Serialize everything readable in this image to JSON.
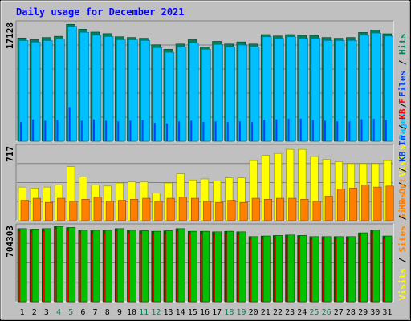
{
  "title": "Daily usage for December 2021",
  "colors": {
    "background": "#C0C0C0",
    "frame": "#808080",
    "title": "#0000FF",
    "hits": "#00805C",
    "files": "#0040FF",
    "pages": "#00C0FF",
    "visits": "#FFFF00",
    "sites": "#FF8000",
    "kb_in": "#00C000",
    "kb_out": "#FF0000",
    "weekend_day": "#00805C",
    "weekday": "#000000"
  },
  "chart_data": [
    {
      "type": "bar",
      "panel": "hits-files-pages",
      "ymax_label": "17128",
      "ylim": [
        0,
        17128
      ],
      "legend": [
        {
          "name": "Hits",
          "sep": "/",
          "color": "#00805C"
        },
        {
          "name": "Files",
          "sep": "/",
          "color": "#0040FF"
        },
        {
          "name": "Pages",
          "sep": "",
          "color": "#00C0FF"
        }
      ],
      "categories": [
        "1",
        "2",
        "3",
        "4",
        "5",
        "6",
        "7",
        "8",
        "9",
        "10",
        "11",
        "12",
        "13",
        "14",
        "15",
        "16",
        "17",
        "18",
        "19",
        "20",
        "21",
        "22",
        "23",
        "24",
        "25",
        "26",
        "27",
        "28",
        "29",
        "30",
        "31"
      ],
      "series": [
        {
          "name": "Hits",
          "color": "#00805C",
          "values": [
            15100,
            14850,
            15170,
            15350,
            17100,
            16380,
            15960,
            15740,
            15280,
            15170,
            15060,
            14110,
            13450,
            14220,
            14850,
            13790,
            14610,
            14220,
            14530,
            14220,
            15600,
            15400,
            15600,
            15480,
            15480,
            15170,
            15060,
            15170,
            15910,
            16230,
            15720
          ]
        },
        {
          "name": "Files",
          "color": "#0040FF",
          "values": [
            2800,
            3200,
            3000,
            3100,
            5000,
            3000,
            3200,
            3000,
            2900,
            3000,
            3100,
            2700,
            2600,
            2900,
            3000,
            2800,
            2900,
            2800,
            2900,
            2800,
            3100,
            3200,
            3300,
            3300,
            3100,
            3000,
            2900,
            2900,
            3200,
            3300,
            3100
          ]
        },
        {
          "name": "Pages",
          "color": "#00C0FF",
          "values": [
            14720,
            14500,
            14720,
            14950,
            16690,
            15930,
            15500,
            15320,
            14840,
            14840,
            14730,
            13680,
            13010,
            13790,
            14400,
            13450,
            14160,
            13790,
            14070,
            13790,
            15280,
            15060,
            15280,
            15060,
            15060,
            14730,
            14730,
            14730,
            15500,
            15830,
            15390
          ]
        }
      ]
    },
    {
      "type": "bar",
      "panel": "visits-sites",
      "ymax_label": "717",
      "ylim": [
        0,
        717
      ],
      "legend": [
        {
          "name": "Visits",
          "sep": "/",
          "color": "#FFFF00"
        },
        {
          "name": "Sites",
          "sep": "",
          "color": "#FF8000"
        }
      ],
      "categories": [
        "1",
        "2",
        "3",
        "4",
        "5",
        "6",
        "7",
        "8",
        "9",
        "10",
        "11",
        "12",
        "13",
        "14",
        "15",
        "16",
        "17",
        "18",
        "19",
        "20",
        "21",
        "22",
        "23",
        "24",
        "25",
        "26",
        "27",
        "28",
        "29",
        "30",
        "31"
      ],
      "series": [
        {
          "name": "Visits",
          "color": "#FFFF00",
          "values": [
            330,
            320,
            330,
            350,
            530,
            430,
            350,
            340,
            370,
            380,
            380,
            270,
            370,
            460,
            400,
            410,
            390,
            420,
            420,
            590,
            640,
            660,
            700,
            700,
            630,
            600,
            580,
            560,
            560,
            560,
            590
          ]
        },
        {
          "name": "Sites",
          "color": "#FF8000",
          "values": [
            200,
            220,
            180,
            220,
            190,
            210,
            230,
            190,
            200,
            210,
            220,
            190,
            220,
            230,
            220,
            190,
            180,
            200,
            180,
            220,
            210,
            220,
            220,
            210,
            190,
            240,
            310,
            320,
            350,
            330,
            340
          ]
        }
      ]
    },
    {
      "type": "bar",
      "panel": "kb",
      "ymax_label": "704303",
      "ylim": [
        0,
        704303
      ],
      "legend": [
        {
          "name": "KB F",
          "sep": "/",
          "color": "#FF0000"
        },
        {
          "name": "KB In",
          "sep": "/",
          "color": "#0040FF"
        },
        {
          "name": "KB Out",
          "sep": "/",
          "color": "#FF8000"
        },
        {
          "name": "Sites",
          "sep": "/",
          "color": "#FF8000"
        },
        {
          "name": "Visits",
          "sep": "",
          "color": "#FFFF00"
        }
      ],
      "categories": [
        "1",
        "2",
        "3",
        "4",
        "5",
        "6",
        "7",
        "8",
        "9",
        "10",
        "11",
        "12",
        "13",
        "14",
        "15",
        "16",
        "17",
        "18",
        "19",
        "20",
        "21",
        "22",
        "23",
        "24",
        "25",
        "26",
        "27",
        "28",
        "29",
        "30",
        "31"
      ],
      "series": [
        {
          "name": "KB In",
          "color": "#00C000",
          "values": [
            690000,
            685000,
            690000,
            710000,
            700000,
            675000,
            675000,
            675000,
            690000,
            675000,
            670000,
            665000,
            670000,
            690000,
            665000,
            665000,
            660000,
            665000,
            660000,
            615000,
            620000,
            625000,
            630000,
            625000,
            615000,
            615000,
            615000,
            615000,
            650000,
            675000,
            620000
          ]
        },
        {
          "name": "KB Out",
          "color": "#FF0000",
          "values": [
            665000,
            660000,
            665000,
            690000,
            675000,
            650000,
            650000,
            650000,
            670000,
            650000,
            645000,
            640000,
            645000,
            665000,
            640000,
            640000,
            635000,
            640000,
            635000,
            595000,
            595000,
            600000,
            605000,
            600000,
            590000,
            590000,
            590000,
            590000,
            625000,
            650000,
            595000
          ]
        }
      ]
    }
  ],
  "xaxis": {
    "weekend_days": [
      "4",
      "5",
      "11",
      "12",
      "18",
      "19",
      "25",
      "26"
    ]
  }
}
